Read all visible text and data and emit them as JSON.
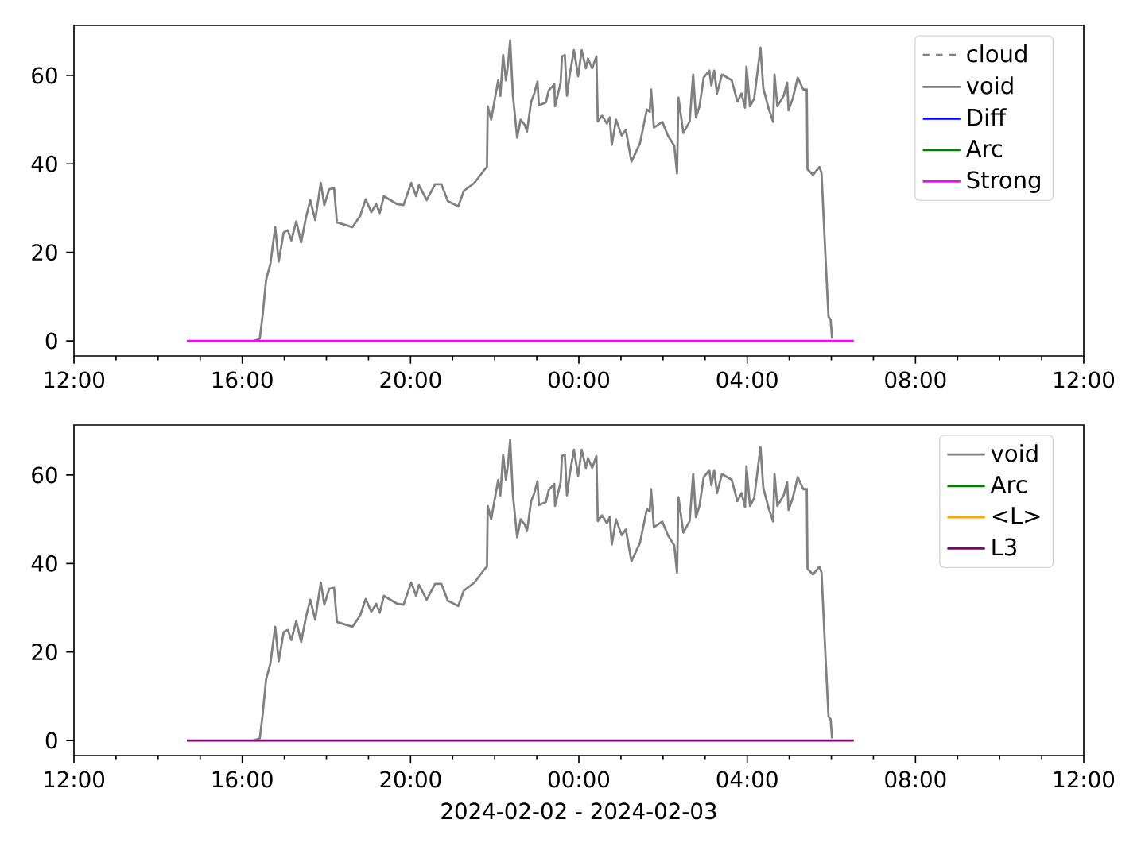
{
  "chart_data": [
    {
      "type": "line",
      "xlim": [
        "2024-02-02T12:00",
        "2024-02-03T12:00"
      ],
      "ylim": [
        -3.4,
        71.3
      ],
      "yticks": [
        0,
        20,
        40,
        60
      ],
      "xticks": [
        {
          "value": "2024-02-02T12:00",
          "label": "12:00"
        },
        {
          "value": "2024-02-02T13:00",
          "label": null
        },
        {
          "value": "2024-02-02T14:00",
          "label": null
        },
        {
          "value": "2024-02-02T15:00",
          "label": null
        },
        {
          "value": "2024-02-02T16:00",
          "label": "16:00"
        },
        {
          "value": "2024-02-02T17:00",
          "label": null
        },
        {
          "value": "2024-02-02T18:00",
          "label": null
        },
        {
          "value": "2024-02-02T19:00",
          "label": null
        },
        {
          "value": "2024-02-02T20:00",
          "label": "20:00"
        },
        {
          "value": "2024-02-02T21:00",
          "label": null
        },
        {
          "value": "2024-02-02T22:00",
          "label": null
        },
        {
          "value": "2024-02-02T23:00",
          "label": null
        },
        {
          "value": "2024-02-03T00:00",
          "label": "00:00"
        },
        {
          "value": "2024-02-03T01:00",
          "label": null
        },
        {
          "value": "2024-02-03T02:00",
          "label": null
        },
        {
          "value": "2024-02-03T03:00",
          "label": null
        },
        {
          "value": "2024-02-03T04:00",
          "label": "04:00"
        },
        {
          "value": "2024-02-03T05:00",
          "label": null
        },
        {
          "value": "2024-02-03T06:00",
          "label": null
        },
        {
          "value": "2024-02-03T07:00",
          "label": null
        },
        {
          "value": "2024-02-03T08:00",
          "label": "08:00"
        },
        {
          "value": "2024-02-03T09:00",
          "label": null
        },
        {
          "value": "2024-02-03T10:00",
          "label": null
        },
        {
          "value": "2024-02-03T11:00",
          "label": null
        },
        {
          "value": "2024-02-03T12:00",
          "label": "12:00"
        }
      ],
      "legend": "top right",
      "series": [
        {
          "name": "cloud",
          "color": "#808080",
          "line_style": "dashed"
        },
        {
          "name": "void",
          "color": "#808080",
          "x": [
            "2024-02-02T16:17",
            "2024-02-02T16:25",
            "2024-02-02T16:29",
            "2024-02-02T16:34",
            "2024-02-02T16:40",
            "2024-02-02T16:47",
            "2024-02-02T16:52",
            "2024-02-02T16:59",
            "2024-02-02T17:05",
            "2024-02-02T17:10",
            "2024-02-02T17:17",
            "2024-02-02T17:24",
            "2024-02-02T17:31",
            "2024-02-02T17:37",
            "2024-02-02T17:44",
            "2024-02-02T17:52",
            "2024-02-02T17:57",
            "2024-02-02T18:04",
            "2024-02-02T18:11",
            "2024-02-02T18:15",
            "2024-02-02T18:25",
            "2024-02-02T18:37",
            "2024-02-02T18:48",
            "2024-02-02T18:56",
            "2024-02-02T19:04",
            "2024-02-02T19:11",
            "2024-02-02T19:16",
            "2024-02-02T19:22",
            "2024-02-02T19:41",
            "2024-02-02T19:50",
            "2024-02-02T20:01",
            "2024-02-02T20:08",
            "2024-02-02T20:12",
            "2024-02-02T20:23",
            "2024-02-02T20:35",
            "2024-02-02T20:44",
            "2024-02-02T20:53",
            "2024-02-02T21:08",
            "2024-02-02T21:16",
            "2024-02-02T21:31",
            "2024-02-02T21:46",
            "2024-02-02T21:49",
            "2024-02-02T21:50",
            "2024-02-02T21:55",
            "2024-02-02T22:01",
            "2024-02-02T22:05",
            "2024-02-02T22:08",
            "2024-02-02T22:12",
            "2024-02-02T22:16",
            "2024-02-02T22:19",
            "2024-02-02T22:22",
            "2024-02-02T22:26",
            "2024-02-02T22:32",
            "2024-02-02T22:37",
            "2024-02-02T22:43",
            "2024-02-02T22:46",
            "2024-02-02T22:52",
            "2024-02-02T22:56",
            "2024-02-02T23:01",
            "2024-02-02T23:03",
            "2024-02-02T23:13",
            "2024-02-02T23:17",
            "2024-02-02T23:25",
            "2024-02-02T23:26",
            "2024-02-02T23:34",
            "2024-02-02T23:36",
            "2024-02-02T23:40",
            "2024-02-02T23:43",
            "2024-02-02T23:47",
            "2024-02-02T23:53",
            "2024-02-02T23:59",
            "2024-02-03T00:04",
            "2024-02-03T00:10",
            "2024-02-03T00:13",
            "2024-02-03T00:19",
            "2024-02-03T00:25",
            "2024-02-03T00:27",
            "2024-02-03T00:33",
            "2024-02-03T00:40",
            "2024-02-03T00:44",
            "2024-02-03T00:47",
            "2024-02-03T00:53",
            "2024-02-03T01:01",
            "2024-02-03T01:07",
            "2024-02-03T01:15",
            "2024-02-03T01:22",
            "2024-02-03T01:27",
            "2024-02-03T01:37",
            "2024-02-03T01:41",
            "2024-02-03T01:43",
            "2024-02-03T01:47",
            "2024-02-03T01:59",
            "2024-02-03T02:07",
            "2024-02-03T02:16",
            "2024-02-03T02:20",
            "2024-02-03T02:22",
            "2024-02-03T02:29",
            "2024-02-03T02:38",
            "2024-02-03T02:43",
            "2024-02-03T02:47",
            "2024-02-03T02:52",
            "2024-02-03T02:58",
            "2024-02-03T03:06",
            "2024-02-03T03:09",
            "2024-02-03T03:13",
            "2024-02-03T03:17",
            "2024-02-03T03:24",
            "2024-02-03T03:38",
            "2024-02-03T03:46",
            "2024-02-03T03:52",
            "2024-02-03T03:57",
            "2024-02-03T03:59",
            "2024-02-03T04:04",
            "2024-02-03T04:10",
            "2024-02-03T04:19",
            "2024-02-03T04:23",
            "2024-02-03T04:31",
            "2024-02-03T04:37",
            "2024-02-03T04:39",
            "2024-02-03T04:43",
            "2024-02-03T04:52",
            "2024-02-03T04:57",
            "2024-02-03T04:59",
            "2024-02-03T05:05",
            "2024-02-03T05:12",
            "2024-02-03T05:20",
            "2024-02-03T05:25",
            "2024-02-03T05:26",
            "2024-02-03T05:34",
            "2024-02-03T05:43",
            "2024-02-03T05:46",
            "2024-02-03T05:52",
            "2024-02-03T05:56",
            "2024-02-03T05:59",
            "2024-02-03T06:01"
          ],
          "values": [
            0,
            0.5,
            5.7,
            13.8,
            17.3,
            25.7,
            17.9,
            24.5,
            25,
            22.7,
            27,
            22.3,
            28,
            31.8,
            27.3,
            35.7,
            30.7,
            34.3,
            34.5,
            26.8,
            26.3,
            25.7,
            28.2,
            32,
            29.1,
            30.9,
            28.9,
            32.7,
            30.9,
            30.7,
            35.7,
            32.7,
            35.2,
            31.8,
            35.4,
            35.4,
            31.6,
            30.4,
            33.9,
            35.7,
            38.8,
            39.3,
            53,
            50,
            55.4,
            58.9,
            55.4,
            64.6,
            58.9,
            62.5,
            67.9,
            55.4,
            45.9,
            50,
            48.8,
            47.3,
            54.1,
            55.7,
            58.6,
            53.2,
            53.9,
            56.6,
            58,
            53,
            58.4,
            64.3,
            64.6,
            55.4,
            60.2,
            65.7,
            59.8,
            65.7,
            61.6,
            63.8,
            61.6,
            64.3,
            49.6,
            50.9,
            49.1,
            50.5,
            44.3,
            50,
            46.4,
            47.7,
            40.5,
            42.9,
            44.6,
            52.3,
            51.8,
            56.8,
            48.2,
            49.5,
            46.4,
            44.1,
            37.9,
            55,
            47,
            49.6,
            60.2,
            50.5,
            53,
            59.5,
            61.1,
            57.7,
            61.1,
            55.9,
            60.2,
            58.9,
            54.1,
            55.9,
            52.7,
            62,
            53,
            54.8,
            66.3,
            57.1,
            52.3,
            49.5,
            60.2,
            53,
            55.4,
            58.4,
            52.1,
            54.8,
            59.5,
            56.8,
            56.8,
            38.8,
            37.5,
            39.3,
            38,
            17.9,
            5.4,
            4.8,
            0.5
          ]
        },
        {
          "name": "Diff",
          "color": "#0000ff"
        },
        {
          "name": "Arc",
          "color": "#008000"
        },
        {
          "name": "Strong",
          "color": "#ff00ff",
          "x": [
            "2024-02-02T14:41",
            "2024-02-03T06:32"
          ],
          "values": [
            0,
            0
          ]
        }
      ]
    },
    {
      "type": "line",
      "xlabel": "2024-02-02 - 2024-02-03",
      "xlim": [
        "2024-02-02T12:00",
        "2024-02-03T12:00"
      ],
      "ylim": [
        -3.4,
        71.3
      ],
      "yticks": [
        0,
        20,
        40,
        60
      ],
      "xticks": [
        {
          "value": "2024-02-02T12:00",
          "label": "12:00"
        },
        {
          "value": "2024-02-02T13:00",
          "label": null
        },
        {
          "value": "2024-02-02T14:00",
          "label": null
        },
        {
          "value": "2024-02-02T15:00",
          "label": null
        },
        {
          "value": "2024-02-02T16:00",
          "label": "16:00"
        },
        {
          "value": "2024-02-02T17:00",
          "label": null
        },
        {
          "value": "2024-02-02T18:00",
          "label": null
        },
        {
          "value": "2024-02-02T19:00",
          "label": null
        },
        {
          "value": "2024-02-02T20:00",
          "label": "20:00"
        },
        {
          "value": "2024-02-02T21:00",
          "label": null
        },
        {
          "value": "2024-02-02T22:00",
          "label": null
        },
        {
          "value": "2024-02-02T23:00",
          "label": null
        },
        {
          "value": "2024-02-03T00:00",
          "label": "00:00"
        },
        {
          "value": "2024-02-03T01:00",
          "label": null
        },
        {
          "value": "2024-02-03T02:00",
          "label": null
        },
        {
          "value": "2024-02-03T03:00",
          "label": null
        },
        {
          "value": "2024-02-03T04:00",
          "label": "04:00"
        },
        {
          "value": "2024-02-03T05:00",
          "label": null
        },
        {
          "value": "2024-02-03T06:00",
          "label": null
        },
        {
          "value": "2024-02-03T07:00",
          "label": null
        },
        {
          "value": "2024-02-03T08:00",
          "label": "08:00"
        },
        {
          "value": "2024-02-03T09:00",
          "label": null
        },
        {
          "value": "2024-02-03T10:00",
          "label": null
        },
        {
          "value": "2024-02-03T11:00",
          "label": null
        },
        {
          "value": "2024-02-03T12:00",
          "label": "12:00"
        }
      ],
      "legend": "top right",
      "series": [
        {
          "name": "void",
          "color": "#808080",
          "x": [
            "2024-02-02T16:17",
            "2024-02-02T16:25",
            "2024-02-02T16:29",
            "2024-02-02T16:34",
            "2024-02-02T16:40",
            "2024-02-02T16:47",
            "2024-02-02T16:52",
            "2024-02-02T16:59",
            "2024-02-02T17:05",
            "2024-02-02T17:10",
            "2024-02-02T17:17",
            "2024-02-02T17:24",
            "2024-02-02T17:31",
            "2024-02-02T17:37",
            "2024-02-02T17:44",
            "2024-02-02T17:52",
            "2024-02-02T17:57",
            "2024-02-02T18:04",
            "2024-02-02T18:11",
            "2024-02-02T18:15",
            "2024-02-02T18:25",
            "2024-02-02T18:37",
            "2024-02-02T18:48",
            "2024-02-02T18:56",
            "2024-02-02T19:04",
            "2024-02-02T19:11",
            "2024-02-02T19:16",
            "2024-02-02T19:22",
            "2024-02-02T19:41",
            "2024-02-02T19:50",
            "2024-02-02T20:01",
            "2024-02-02T20:08",
            "2024-02-02T20:12",
            "2024-02-02T20:23",
            "2024-02-02T20:35",
            "2024-02-02T20:44",
            "2024-02-02T20:53",
            "2024-02-02T21:08",
            "2024-02-02T21:16",
            "2024-02-02T21:31",
            "2024-02-02T21:46",
            "2024-02-02T21:49",
            "2024-02-02T21:50",
            "2024-02-02T21:55",
            "2024-02-02T22:01",
            "2024-02-02T22:05",
            "2024-02-02T22:08",
            "2024-02-02T22:12",
            "2024-02-02T22:16",
            "2024-02-02T22:19",
            "2024-02-02T22:22",
            "2024-02-02T22:26",
            "2024-02-02T22:32",
            "2024-02-02T22:37",
            "2024-02-02T22:43",
            "2024-02-02T22:46",
            "2024-02-02T22:52",
            "2024-02-02T22:56",
            "2024-02-02T23:01",
            "2024-02-02T23:03",
            "2024-02-02T23:13",
            "2024-02-02T23:17",
            "2024-02-02T23:25",
            "2024-02-02T23:26",
            "2024-02-02T23:34",
            "2024-02-02T23:36",
            "2024-02-02T23:40",
            "2024-02-02T23:43",
            "2024-02-02T23:47",
            "2024-02-02T23:53",
            "2024-02-02T23:59",
            "2024-02-03T00:04",
            "2024-02-03T00:10",
            "2024-02-03T00:13",
            "2024-02-03T00:19",
            "2024-02-03T00:25",
            "2024-02-03T00:27",
            "2024-02-03T00:33",
            "2024-02-03T00:40",
            "2024-02-03T00:44",
            "2024-02-03T00:47",
            "2024-02-03T00:53",
            "2024-02-03T01:01",
            "2024-02-03T01:07",
            "2024-02-03T01:15",
            "2024-02-03T01:22",
            "2024-02-03T01:27",
            "2024-02-03T01:37",
            "2024-02-03T01:41",
            "2024-02-03T01:43",
            "2024-02-03T01:47",
            "2024-02-03T01:59",
            "2024-02-03T02:07",
            "2024-02-03T02:16",
            "2024-02-03T02:20",
            "2024-02-03T02:22",
            "2024-02-03T02:29",
            "2024-02-03T02:38",
            "2024-02-03T02:43",
            "2024-02-03T02:47",
            "2024-02-03T02:52",
            "2024-02-03T02:58",
            "2024-02-03T03:06",
            "2024-02-03T03:09",
            "2024-02-03T03:13",
            "2024-02-03T03:17",
            "2024-02-03T03:24",
            "2024-02-03T03:38",
            "2024-02-03T03:46",
            "2024-02-03T03:52",
            "2024-02-03T03:57",
            "2024-02-03T03:59",
            "2024-02-03T04:04",
            "2024-02-03T04:10",
            "2024-02-03T04:19",
            "2024-02-03T04:23",
            "2024-02-03T04:31",
            "2024-02-03T04:37",
            "2024-02-03T04:39",
            "2024-02-03T04:43",
            "2024-02-03T04:52",
            "2024-02-03T04:57",
            "2024-02-03T04:59",
            "2024-02-03T05:05",
            "2024-02-03T05:12",
            "2024-02-03T05:20",
            "2024-02-03T05:25",
            "2024-02-03T05:26",
            "2024-02-03T05:34",
            "2024-02-03T05:43",
            "2024-02-03T05:46",
            "2024-02-03T05:52",
            "2024-02-03T05:56",
            "2024-02-03T05:59",
            "2024-02-03T06:01"
          ],
          "values": [
            0,
            0.5,
            5.7,
            13.8,
            17.3,
            25.7,
            17.9,
            24.5,
            25,
            22.7,
            27,
            22.3,
            28,
            31.8,
            27.3,
            35.7,
            30.7,
            34.3,
            34.5,
            26.8,
            26.3,
            25.7,
            28.2,
            32,
            29.1,
            30.9,
            28.9,
            32.7,
            30.9,
            30.7,
            35.7,
            32.7,
            35.2,
            31.8,
            35.4,
            35.4,
            31.6,
            30.4,
            33.9,
            35.7,
            38.8,
            39.3,
            53,
            50,
            55.4,
            58.9,
            55.4,
            64.6,
            58.9,
            62.5,
            67.9,
            55.4,
            45.9,
            50,
            48.8,
            47.3,
            54.1,
            55.7,
            58.6,
            53.2,
            53.9,
            56.6,
            58,
            53,
            58.4,
            64.3,
            64.6,
            55.4,
            60.2,
            65.7,
            59.8,
            65.7,
            61.6,
            63.8,
            61.6,
            64.3,
            49.6,
            50.9,
            49.1,
            50.5,
            44.3,
            50,
            46.4,
            47.7,
            40.5,
            42.9,
            44.6,
            52.3,
            51.8,
            56.8,
            48.2,
            49.5,
            46.4,
            44.1,
            37.9,
            55,
            47,
            49.6,
            60.2,
            50.5,
            53,
            59.5,
            61.1,
            57.7,
            61.1,
            55.9,
            60.2,
            58.9,
            54.1,
            55.9,
            52.7,
            62,
            53,
            54.8,
            66.3,
            57.1,
            52.3,
            49.5,
            60.2,
            53,
            55.4,
            58.4,
            52.1,
            54.8,
            59.5,
            56.8,
            56.8,
            38.8,
            37.5,
            39.3,
            38,
            17.9,
            5.4,
            4.8,
            0.5
          ]
        },
        {
          "name": "Arc",
          "color": "#008000"
        },
        {
          "name": "<L>",
          "color": "#ffa500"
        },
        {
          "name": "L3",
          "color": "#800080",
          "x": [
            "2024-02-02T14:41",
            "2024-02-03T06:32"
          ],
          "values": [
            0,
            0
          ]
        }
      ]
    }
  ]
}
